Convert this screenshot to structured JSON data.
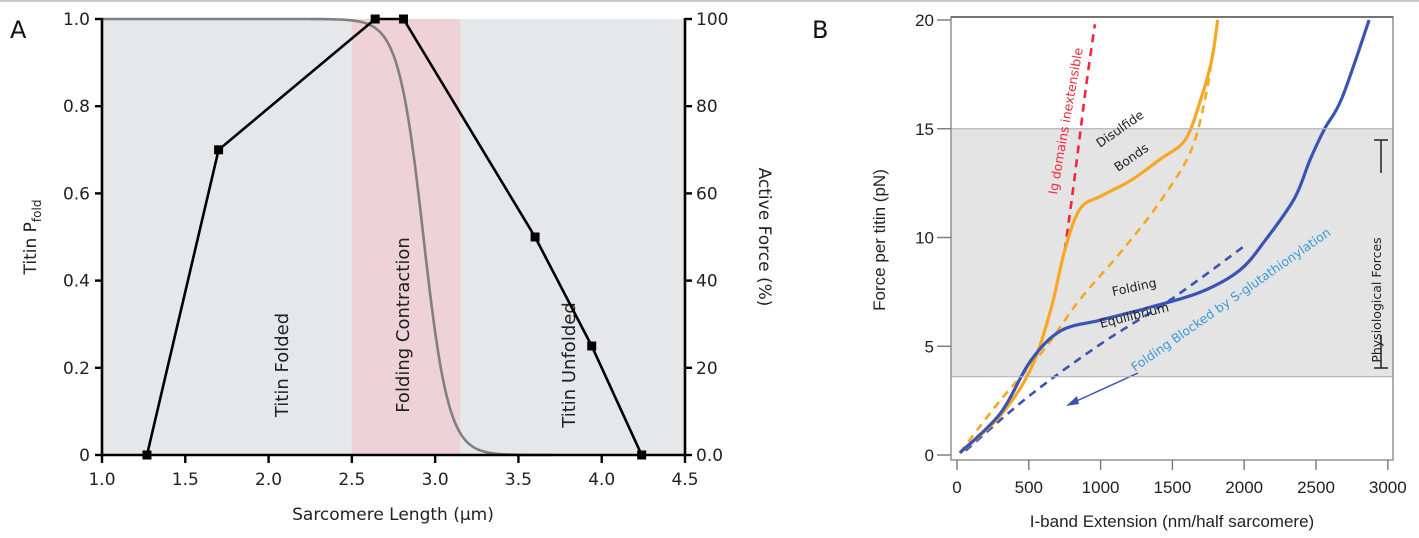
{
  "chart_data": [
    {
      "panel": "A",
      "type": "line",
      "panel_letter": "A",
      "xlabel": "Sarcomere Length (μm)",
      "ylabel_left": "Titin P",
      "ylabel_left_sub": "fold",
      "ylabel_right": "Active Force (%)",
      "xlim": [
        1.0,
        4.5
      ],
      "ylim_left": [
        0,
        1.0
      ],
      "ylim_right": [
        0,
        100
      ],
      "x_ticks": [
        "1.0",
        "1.5",
        "2.0",
        "2.5",
        "3.0",
        "3.5",
        "4.0",
        "4.5"
      ],
      "y_left_ticks": [
        "0",
        "0.2",
        "0.4",
        "0.6",
        "0.8",
        "1.0"
      ],
      "y_right_ticks": [
        "0.0",
        "20",
        "40",
        "60",
        "80",
        "100"
      ],
      "background_color": "#e6e7e9",
      "band": {
        "x_start": 2.5,
        "x_end": 3.15,
        "color": "#efd1d8"
      },
      "regions": [
        {
          "label": "Titin Folded",
          "x": 2.1,
          "y": 0.33
        },
        {
          "label": "Folding Contraction",
          "x": 2.8,
          "y": 0.4
        },
        {
          "label": "Titin Unfolded",
          "x": 3.35,
          "y": 0.33
        }
      ],
      "series": [
        {
          "name": "Active Force (%)",
          "axis": "right",
          "color": "#000000",
          "marker": "square",
          "x": [
            1.27,
            1.7,
            2.64,
            2.81,
            3.6,
            3.94,
            4.24
          ],
          "y": [
            0,
            70,
            100,
            100,
            50,
            25,
            0
          ]
        },
        {
          "name": "Titin Pfold",
          "axis": "left",
          "color": "#808080",
          "model": "sigmoid",
          "midpoint": 2.93,
          "width": 0.075
        }
      ]
    },
    {
      "panel": "B",
      "type": "line",
      "panel_letter": "B",
      "xlabel": "I-band Extension (nm/half sarcomere)",
      "ylabel": "Force per titin (pN)",
      "xlim": [
        0,
        3000
      ],
      "ylim": [
        0,
        20
      ],
      "x_ticks": [
        "0",
        "500",
        "1000",
        "1500",
        "2000",
        "2500",
        "3000"
      ],
      "y_ticks": [
        "0",
        "5",
        "10",
        "15",
        "20"
      ],
      "shaded_band": {
        "y_start": 3.6,
        "y_end": 15,
        "color": "#e4e4e4",
        "label": "Physiological Forces"
      },
      "series": [
        {
          "name": "Ig domains inextensible",
          "color": "#ee2a3a",
          "style": "dashed",
          "x": [
            750,
            800,
            850,
            900,
            960
          ],
          "y": [
            9.4,
            11.8,
            14.4,
            17.0,
            19.8
          ]
        },
        {
          "name": "Disulfide Bonds",
          "color": "#f7a823",
          "style": "solid",
          "x": [
            20,
            300,
            510,
            650,
            750,
            855,
            1000,
            1205,
            1415,
            1590,
            1700,
            1775,
            1815
          ],
          "y": [
            0.1,
            1.8,
            3.9,
            6.6,
            9.4,
            11.3,
            11.9,
            12.6,
            13.6,
            14.5,
            16.4,
            18.2,
            20.0
          ]
        },
        {
          "name": "Orange dashed",
          "color": "#f7a823",
          "style": "dashed",
          "x": [
            20,
            300,
            600,
            850,
            1150,
            1420,
            1630,
            1735,
            1780
          ],
          "y": [
            0.1,
            2.5,
            4.8,
            7.1,
            9.4,
            11.7,
            14.0,
            16.6,
            18.5
          ]
        },
        {
          "name": "Folding Equilibrium",
          "color": "#3a54b4",
          "style": "solid",
          "x": [
            20,
            300,
            510,
            720,
            1000,
            1350,
            1700,
            1970,
            2150,
            2350,
            2460,
            2560,
            2680,
            2870
          ],
          "y": [
            0.1,
            1.9,
            4.3,
            5.7,
            6.2,
            6.8,
            7.5,
            8.5,
            9.9,
            11.8,
            13.6,
            15.0,
            16.4,
            20.0
          ]
        },
        {
          "name": "Folding Blocked by S-glutathionylation",
          "color": "#3a54b4",
          "style": "dashed",
          "x": [
            60,
            500,
            1000,
            1500,
            2000
          ],
          "y": [
            0.2,
            2.7,
            5.1,
            7.2,
            9.6
          ]
        }
      ],
      "annotations": [
        {
          "text": "Ig domains inextensible",
          "color": "#ee2a3a"
        },
        {
          "text": "Disulfide",
          "color": "#222222"
        },
        {
          "text": "Bonds",
          "color": "#222222"
        },
        {
          "text": "Folding",
          "color": "#222222"
        },
        {
          "text": "Equilibrium",
          "color": "#222222"
        },
        {
          "text": "Folding Blocked by S-glutathionylation",
          "color": "#3a9ad9"
        },
        {
          "text": "Physiological Forces",
          "color": "#222222"
        }
      ]
    }
  ]
}
